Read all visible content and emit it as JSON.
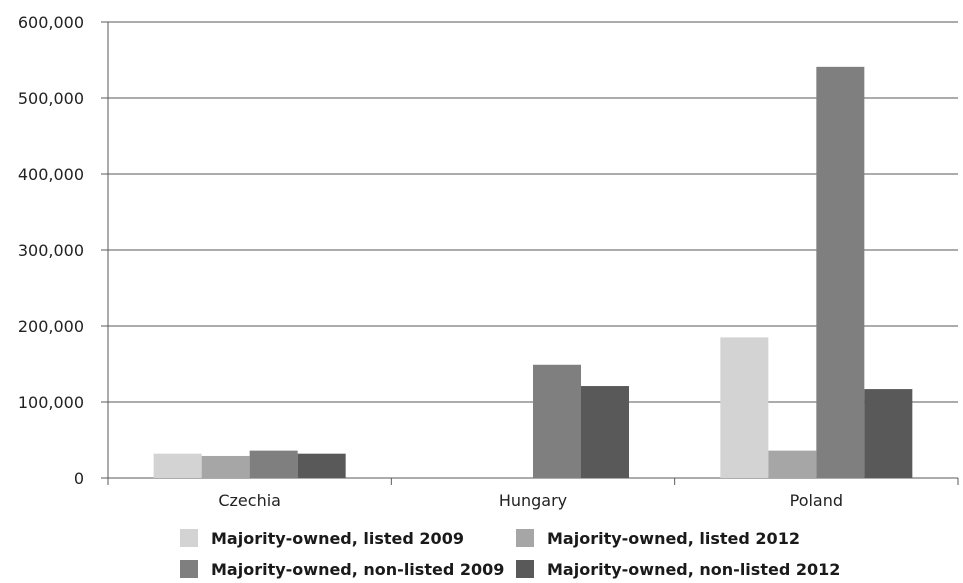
{
  "chart_data": {
    "type": "bar",
    "categories": [
      "Czechia",
      "Hungary",
      "Poland"
    ],
    "series": [
      {
        "name": "Majority-owned, listed 2009",
        "color": "#d3d3d3",
        "values": [
          32000,
          0,
          185000
        ]
      },
      {
        "name": "Majority-owned, listed 2012",
        "color": "#a6a6a6",
        "values": [
          29000,
          0,
          36000
        ]
      },
      {
        "name": "Majority-owned, non-listed 2009",
        "color": "#7f7f7f",
        "values": [
          36000,
          149000,
          541000
        ]
      },
      {
        "name": "Majority-owned, non-listed 2012",
        "color": "#595959",
        "values": [
          32000,
          121000,
          117000
        ]
      }
    ],
    "ylim": [
      0,
      600000
    ],
    "yticks": [
      0,
      100000,
      200000,
      300000,
      400000,
      500000,
      600000
    ],
    "ytick_labels": [
      "0",
      "100,000",
      "200,000",
      "300,000",
      "400,000",
      "500,000",
      "600,000"
    ],
    "grid": true,
    "legend_position": "bottom"
  }
}
